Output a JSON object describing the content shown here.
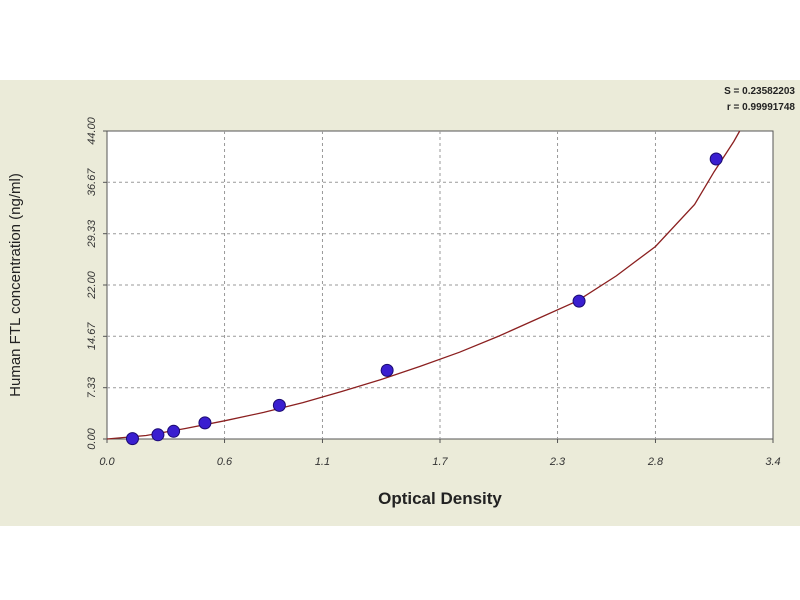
{
  "chart_data": {
    "type": "scatter",
    "title": "",
    "xlabel": "Optical Density",
    "ylabel": "Human FTL concentration (ng/ml)",
    "x_ticks": [
      {
        "value": 0.0,
        "label": "0.0"
      },
      {
        "value": 0.6,
        "label": "0.6"
      },
      {
        "value": 1.1,
        "label": "1.1"
      },
      {
        "value": 1.7,
        "label": "1.7"
      },
      {
        "value": 2.3,
        "label": "2.3"
      },
      {
        "value": 2.8,
        "label": "2.8"
      },
      {
        "value": 3.4,
        "label": "3.4"
      }
    ],
    "y_ticks": [
      {
        "value": 0.0,
        "label": "0.00"
      },
      {
        "value": 7.33,
        "label": "7.33"
      },
      {
        "value": 14.67,
        "label": "14.67"
      },
      {
        "value": 22.0,
        "label": "22.00"
      },
      {
        "value": 29.33,
        "label": "29.33"
      },
      {
        "value": 36.67,
        "label": "36.67"
      },
      {
        "value": 44.0,
        "label": "44.00"
      }
    ],
    "xlim": [
      0,
      3.4
    ],
    "ylim": [
      0,
      44
    ],
    "grid": true,
    "series": [
      {
        "x": [
          0.13,
          0.26,
          0.34,
          0.5,
          0.88,
          1.43,
          2.41,
          3.11
        ],
        "y": [
          0.05,
          0.6,
          1.1,
          2.3,
          4.8,
          9.8,
          19.7,
          40.0
        ]
      }
    ],
    "fit_curve": {
      "x": [
        0.0,
        0.2,
        0.4,
        0.6,
        0.8,
        1.0,
        1.2,
        1.4,
        1.6,
        1.8,
        2.0,
        2.2,
        2.4,
        2.6,
        2.8,
        3.0,
        3.1,
        3.2,
        3.23
      ],
      "y": [
        0.0,
        0.5,
        1.5,
        2.6,
        3.8,
        5.2,
        6.8,
        8.5,
        10.4,
        12.4,
        14.7,
        17.2,
        19.7,
        23.3,
        27.5,
        33.5,
        38.2,
        42.5,
        44.0
      ]
    },
    "stats": {
      "s_text": "S = 0.23582203",
      "r_text": "r = 0.99991748"
    },
    "colors": {
      "point_fill": "#3a1fd0",
      "point_stroke": "#1a0a70",
      "curve": "#8b2020",
      "grid": "#9a9a9a",
      "plot_bg": "#ffffff",
      "panel_bg": "#ebebd9"
    }
  }
}
